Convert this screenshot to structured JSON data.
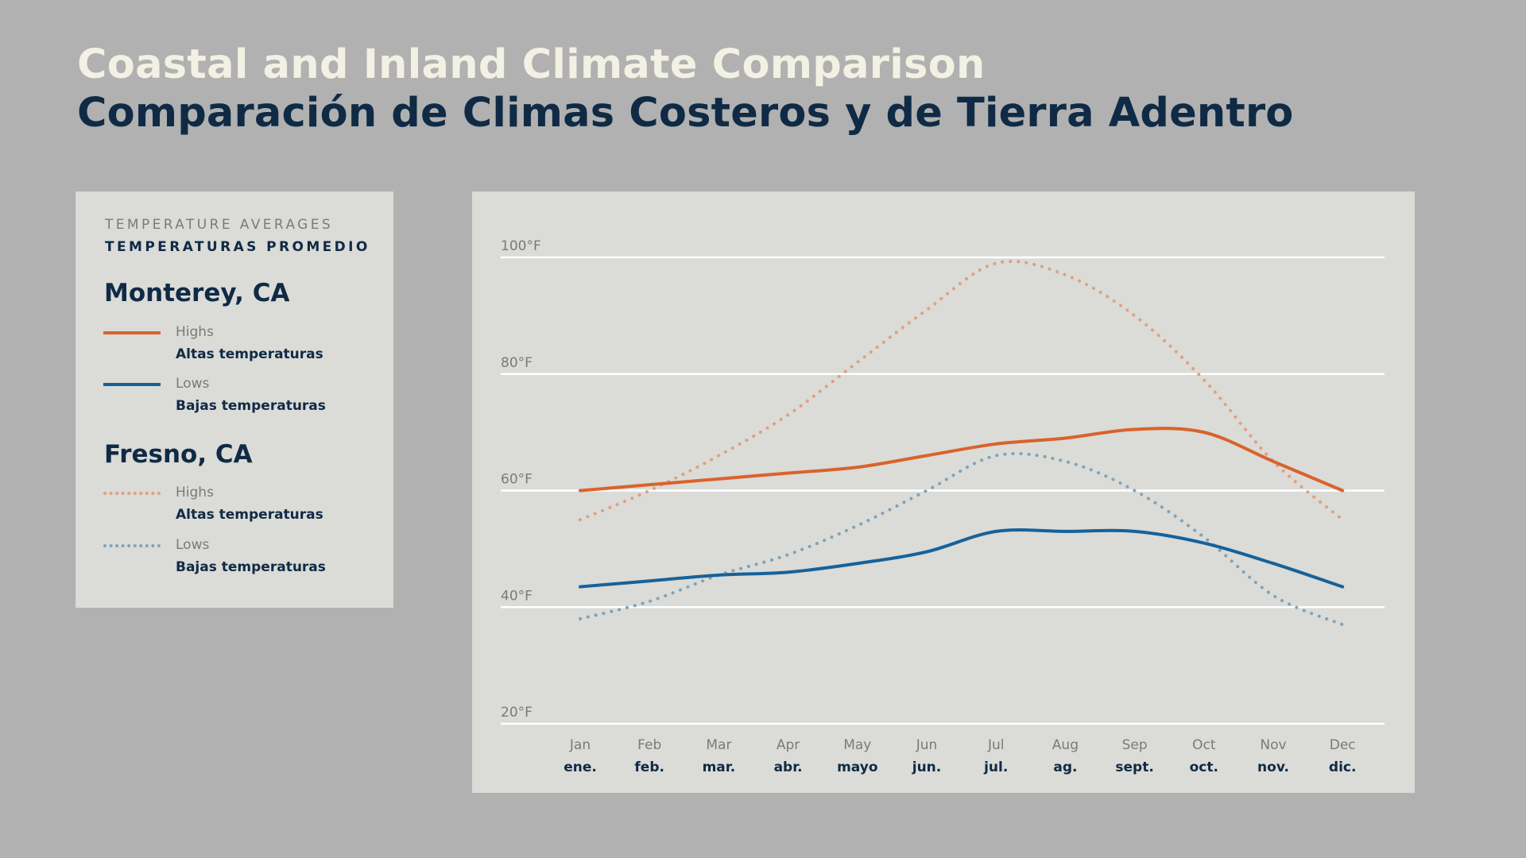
{
  "title_en": "Coastal and Inland Climate Comparison",
  "title_es": "Comparación de Climas Costeros y de Tierra Adentro",
  "legend": {
    "heading_en": "TEMPERATURE AVERAGES",
    "heading_es": "TEMPERATURAS PROMEDIO",
    "groups": [
      {
        "city": "Monterey, CA",
        "items": [
          {
            "en": "Highs",
            "es": "Altas temperaturas",
            "color": "#d9632b",
            "style": "solid"
          },
          {
            "en": "Lows",
            "es": "Bajas temperaturas",
            "color": "#15629b",
            "style": "solid"
          }
        ]
      },
      {
        "city": "Fresno, CA",
        "items": [
          {
            "en": "Highs",
            "es": "Altas temperaturas",
            "color": "#e0a07e",
            "style": "dotted"
          },
          {
            "en": "Lows",
            "es": "Bajas temperaturas",
            "color": "#7ea3bb",
            "style": "dotted"
          }
        ]
      }
    ]
  },
  "chart_data": {
    "type": "line",
    "title": "",
    "xlabel": "",
    "ylabel": "",
    "ylim": [
      20,
      100
    ],
    "yticks": [
      20,
      40,
      60,
      80,
      100
    ],
    "ytick_labels": [
      "20°F",
      "40°F",
      "60°F",
      "80°F",
      "100°F"
    ],
    "grid": true,
    "categories": [
      "Jan",
      "Feb",
      "Mar",
      "Apr",
      "May",
      "Jun",
      "Jul",
      "Aug",
      "Sep",
      "Oct",
      "Nov",
      "Dec"
    ],
    "categories_es": [
      "ene.",
      "feb.",
      "mar.",
      "abr.",
      "mayo",
      "jun.",
      "jul.",
      "ag.",
      "sept.",
      "oct.",
      "nov.",
      "dic."
    ],
    "series": [
      {
        "name": "Monterey, CA Highs",
        "color": "#d9632b",
        "style": "solid",
        "values": [
          60,
          61,
          62,
          63,
          64,
          66,
          68,
          69,
          70.5,
          70,
          65,
          60
        ]
      },
      {
        "name": "Monterey, CA Lows",
        "color": "#15629b",
        "style": "solid",
        "values": [
          43.5,
          44.5,
          45.5,
          46,
          47.5,
          49.5,
          53,
          53,
          53,
          51,
          47.5,
          43.5
        ]
      },
      {
        "name": "Fresno, CA Highs",
        "color": "#e0a07e",
        "style": "dotted",
        "values": [
          55,
          60,
          66,
          73,
          82,
          91,
          99,
          97,
          90,
          79,
          65,
          55
        ]
      },
      {
        "name": "Fresno, CA Lows",
        "color": "#7ea3bb",
        "style": "dotted",
        "values": [
          38,
          41,
          45.5,
          49,
          54,
          60,
          66,
          65,
          60,
          52,
          42,
          37
        ]
      }
    ]
  }
}
